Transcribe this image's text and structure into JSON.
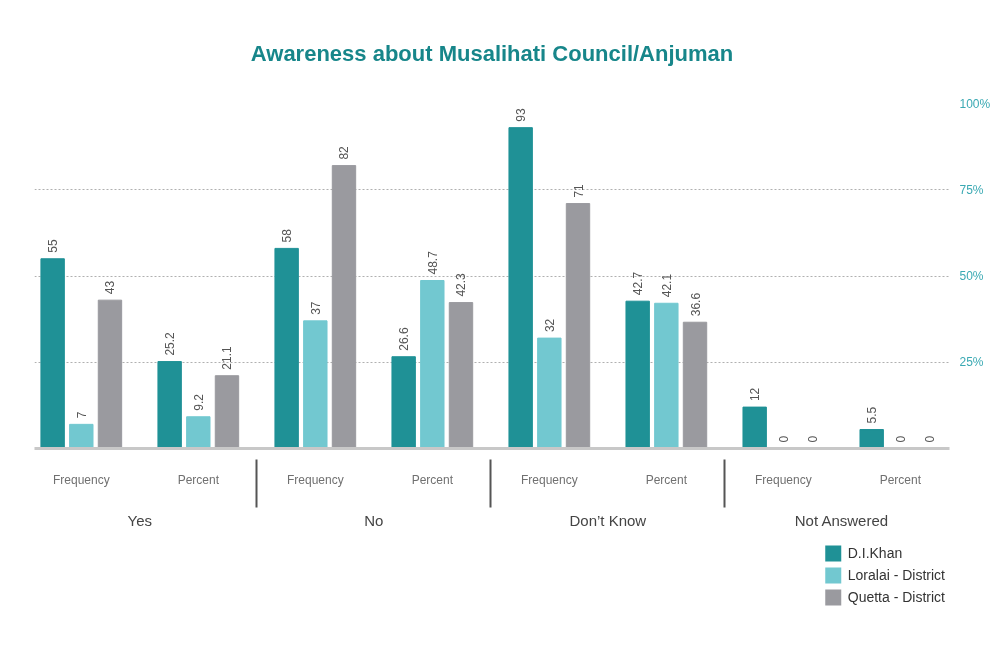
{
  "chart_data": {
    "type": "bar",
    "title": "Awareness about Musalihati Council/Anjuman",
    "categories": [
      "Frequency",
      "Percent",
      "Frequency",
      "Percent",
      "Frequency",
      "Percent",
      "Frequency",
      "Percent"
    ],
    "series": [
      {
        "name": "D.I.Khan",
        "color": "#1f9196",
        "values": [
          55,
          25.2,
          58,
          26.6,
          93,
          42.7,
          12,
          5.5
        ]
      },
      {
        "name": "Loralai - District",
        "color": "#72c8d0",
        "values": [
          7,
          9.2,
          37,
          48.7,
          32,
          42.1,
          0,
          0
        ]
      },
      {
        "name": "Quetta - District",
        "color": "#9a9a9f",
        "values": [
          43,
          21.1,
          82,
          42.3,
          71,
          36.6,
          0,
          0
        ]
      }
    ],
    "annotations": [
      "Yes",
      "No",
      "Don’t Know",
      "Not Answered"
    ],
    "ylim": [
      0,
      100
    ],
    "yticks": [
      {
        "value": 25,
        "label": "25%"
      },
      {
        "value": 50,
        "label": "50%"
      },
      {
        "value": 75,
        "label": "75%"
      },
      {
        "value": 100,
        "label": "100%"
      }
    ],
    "grid": "y",
    "legend": "bottom right",
    "data_labels": true
  }
}
